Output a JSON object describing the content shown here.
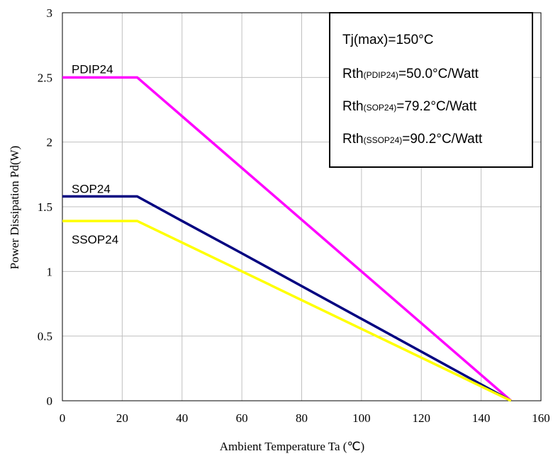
{
  "chart_data": {
    "type": "line",
    "xlabel": "Ambient Temperature Ta (℃)",
    "ylabel": "Power Dissipation Pd(W)",
    "xlim": [
      0,
      160
    ],
    "ylim": [
      0,
      3
    ],
    "x_ticks": [
      "0",
      "20",
      "40",
      "60",
      "80",
      "100",
      "120",
      "140",
      "160"
    ],
    "y_ticks": [
      "0",
      "0.5",
      "1",
      "1.5",
      "2",
      "2.5",
      "3"
    ],
    "grid": true,
    "series": [
      {
        "name": "PDIP24",
        "color": "#ff00ff",
        "x": [
          0,
          25,
          150
        ],
        "y": [
          2.5,
          2.5,
          0
        ]
      },
      {
        "name": "SOP24",
        "color": "#000080",
        "x": [
          0,
          25,
          40,
          60,
          150
        ],
        "y": [
          1.58,
          1.58,
          1.39,
          1.14,
          0
        ]
      },
      {
        "name": "SSOP24",
        "color": "#ffff00",
        "x": [
          0,
          25,
          150
        ],
        "y": [
          1.39,
          1.39,
          0
        ]
      }
    ],
    "annotation": {
      "title": "Tj(max)=150°C",
      "lines": [
        {
          "prefix": "Rth",
          "sub": "(PDIP24)",
          "value": "=50.0°C/Watt"
        },
        {
          "prefix": "Rth",
          "sub": "(SOP24)",
          "value": "=79.2°C/Watt"
        },
        {
          "prefix": "Rth",
          "sub": "(SSOP24)",
          "value": "=90.2°C/Watt"
        }
      ]
    }
  }
}
